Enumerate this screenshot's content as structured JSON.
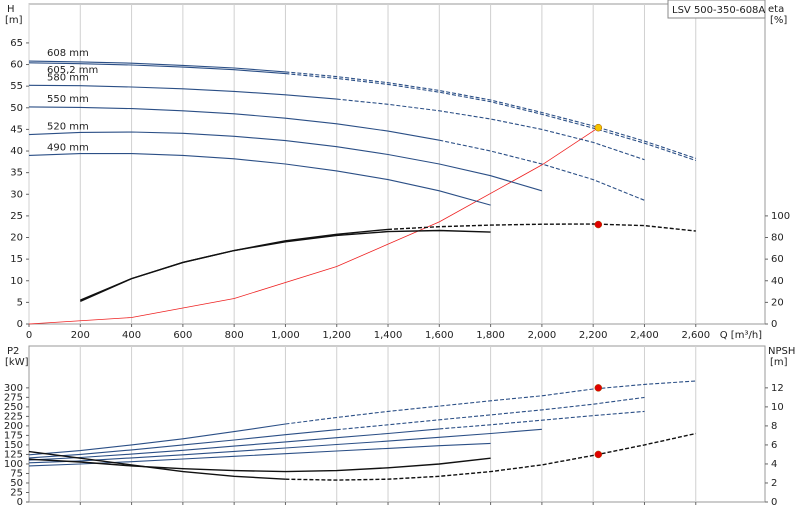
{
  "chart_data": [
    {
      "type": "line",
      "title": "LSV 500-350-608A",
      "ylabel": "H",
      "yunit": "[m]",
      "y2label": "eta",
      "y2unit": "[%]",
      "xlabel": "Q [m³/h]",
      "grid": true,
      "xtick_labels": true,
      "x": [
        0,
        200,
        400,
        600,
        800,
        1000,
        1200,
        1400,
        1600,
        1800,
        2000,
        2200,
        2400,
        2600
      ],
      "xlim": [
        0,
        2870
      ],
      "xticks": [
        0,
        200,
        400,
        600,
        800,
        {
          "value": 1000,
          "label": "1,000"
        },
        {
          "value": 1200,
          "label": "1,200"
        },
        {
          "value": 1400,
          "label": "1,400"
        },
        {
          "value": 1600,
          "label": "1,600"
        },
        {
          "value": 1800,
          "label": "1,800"
        },
        {
          "value": 2000,
          "label": "2,000"
        },
        {
          "value": 2200,
          "label": "2,200"
        },
        {
          "value": 2400,
          "label": "2,400"
        },
        {
          "value": 2600,
          "label": "2,600"
        }
      ],
      "ylim": [
        0,
        74
      ],
      "yticks": [
        0,
        5,
        10,
        15,
        20,
        25,
        30,
        35,
        40,
        45,
        50,
        55,
        60,
        65
      ],
      "y2lim": [
        0,
        296
      ],
      "y2ticks": [
        0,
        20,
        40,
        60,
        80,
        100
      ],
      "series": [
        {
          "name": "608 mm",
          "color": "#2b4f86",
          "values": [
            60.8,
            60.6,
            60.3,
            59.8,
            59.2,
            58.3,
            null,
            null,
            null,
            null,
            null,
            null,
            null,
            null
          ]
        },
        {
          "color": "#2b4f86",
          "style": "dashed",
          "values": [
            null,
            null,
            null,
            null,
            null,
            58.3,
            57.2,
            55.8,
            54,
            51.8,
            48.9,
            45.8,
            42.3,
            38.3
          ]
        },
        {
          "name": "605,2 mm",
          "color": "#2b4f86",
          "values": [
            60.4,
            60.2,
            59.9,
            59.4,
            58.8,
            57.9,
            null,
            null,
            null,
            null,
            null,
            null,
            null,
            null
          ]
        },
        {
          "color": "#2b4f86",
          "style": "dashed",
          "values": [
            null,
            null,
            null,
            null,
            null,
            57.9,
            56.8,
            55.4,
            53.6,
            51.4,
            48.5,
            45.3,
            41.8,
            37.8
          ]
        },
        {
          "name": "580 mm",
          "color": "#2b4f86",
          "values": [
            55.2,
            55.1,
            54.8,
            54.4,
            53.8,
            53,
            52,
            null,
            null,
            null,
            null,
            null,
            null,
            null
          ]
        },
        {
          "color": "#2b4f86",
          "style": "dashed",
          "values": [
            null,
            null,
            null,
            null,
            null,
            null,
            52,
            50.8,
            49.3,
            47.4,
            45,
            42,
            38,
            null
          ]
        },
        {
          "name": "550 mm",
          "color": "#2b4f86",
          "values": [
            50.2,
            50.1,
            49.8,
            49.3,
            48.6,
            47.6,
            46.3,
            44.6,
            42.5,
            null,
            null,
            null,
            null,
            null
          ]
        },
        {
          "color": "#2b4f86",
          "style": "dashed",
          "values": [
            null,
            null,
            null,
            null,
            null,
            null,
            null,
            null,
            42.5,
            40,
            37,
            33.4,
            28.6,
            null
          ]
        },
        {
          "name": "520 mm",
          "color": "#2b4f86",
          "values": [
            43.8,
            44.3,
            44.4,
            44.1,
            43.4,
            42.4,
            41,
            39.2,
            37,
            34.3,
            30.8,
            null,
            null,
            null
          ]
        },
        {
          "name": "490 mm",
          "color": "#2b4f86",
          "values": [
            39,
            39.4,
            39.4,
            39,
            38.2,
            37,
            35.4,
            33.4,
            30.8,
            27.5,
            null,
            null,
            null,
            null
          ]
        },
        {
          "color": "#111111",
          "axis": "y2",
          "values": [
            null,
            22,
            42,
            57,
            68,
            77,
            83,
            87.5,
            null,
            null,
            null,
            null,
            null,
            null
          ]
        },
        {
          "color": "#111111",
          "axis": "y2",
          "style": "dashed",
          "values": [
            null,
            null,
            null,
            null,
            null,
            null,
            null,
            87.5,
            90,
            91.5,
            92.3,
            92.5,
            91,
            86
          ]
        },
        {
          "color": "#111111",
          "axis": "y2",
          "values": [
            null,
            21,
            42,
            57,
            68,
            76,
            82,
            85.5,
            86.5,
            85,
            null,
            null,
            null,
            null
          ]
        }
      ],
      "system_curve": {
        "color": "#ee2222",
        "x": [
          0,
          400,
          800,
          1200,
          1600,
          2000,
          2220
        ],
        "values": [
          0,
          1.5,
          5.9,
          13.3,
          23.6,
          36.8,
          45.4
        ]
      },
      "markers": [
        {
          "x": 2220,
          "y": 45.4,
          "color": "#f5c400"
        },
        {
          "x": 2220,
          "y": 92,
          "axis": "y2",
          "color": "#e00000"
        }
      ]
    },
    {
      "type": "line",
      "ylabel": "P2",
      "yunit": "[kW]",
      "y2label": "NPSH",
      "y2unit": "[m]",
      "grid": true,
      "xtick_labels": false,
      "x": [
        0,
        200,
        400,
        600,
        800,
        1000,
        1200,
        1400,
        1600,
        1800,
        2000,
        2200,
        2400,
        2600
      ],
      "xlim": [
        0,
        2870
      ],
      "xticks": [
        200,
        400,
        600,
        800,
        1000,
        1200,
        1400,
        1600,
        1800,
        2000,
        2200,
        2400,
        2600
      ],
      "ylim": [
        0,
        410
      ],
      "yticks": [
        0,
        25,
        50,
        75,
        100,
        125,
        150,
        175,
        200,
        225,
        250,
        275,
        300
      ],
      "y2lim": [
        0,
        16.4
      ],
      "y2ticks": [
        0,
        2,
        4,
        6,
        8,
        10,
        12
      ],
      "series": [
        {
          "color": "#2b4f86",
          "values": [
            124,
            135,
            150,
            166,
            185,
            205,
            null,
            null,
            null,
            null,
            null,
            null,
            null,
            null
          ]
        },
        {
          "color": "#2b4f86",
          "style": "dashed",
          "values": [
            null,
            null,
            null,
            null,
            null,
            205,
            222,
            238,
            252,
            266,
            279,
            297,
            309,
            318
          ]
        },
        {
          "color": "#2b4f86",
          "values": [
            116,
            125,
            137,
            150,
            163,
            177,
            190,
            null,
            null,
            null,
            null,
            null,
            null,
            null
          ]
        },
        {
          "color": "#2b4f86",
          "style": "dashed",
          "values": [
            null,
            null,
            null,
            null,
            null,
            null,
            190,
            203,
            216,
            229,
            242,
            257,
            275,
            null
          ]
        },
        {
          "color": "#2b4f86",
          "values": [
            110,
            117,
            126,
            136,
            147,
            158,
            169,
            180,
            192,
            null,
            null,
            null,
            null,
            null
          ]
        },
        {
          "color": "#2b4f86",
          "style": "dashed",
          "values": [
            null,
            null,
            null,
            null,
            null,
            null,
            null,
            null,
            192,
            203,
            215,
            227,
            238,
            null
          ]
        },
        {
          "color": "#2b4f86",
          "values": [
            103,
            108,
            116,
            124,
            133,
            142,
            151,
            160,
            170,
            180,
            191,
            null,
            null,
            null
          ]
        },
        {
          "color": "#2b4f86",
          "values": [
            95,
            100,
            106,
            113,
            120,
            127,
            134,
            141,
            148,
            154,
            null,
            null,
            null,
            null
          ]
        },
        {
          "color": "#111111",
          "axis": "y2",
          "values": [
            5.3,
            4.6,
            3.9,
            3.2,
            2.7,
            2.4,
            null,
            null,
            null,
            null,
            null,
            null,
            null,
            null
          ]
        },
        {
          "color": "#111111",
          "axis": "y2",
          "style": "dashed",
          "values": [
            null,
            null,
            null,
            null,
            null,
            2.4,
            2.3,
            2.4,
            2.7,
            3.2,
            3.9,
            4.9,
            6,
            7.2
          ]
        },
        {
          "color": "#111111",
          "axis": "y2",
          "values": [
            4.5,
            4.2,
            3.8,
            3.5,
            3.3,
            3.2,
            3.3,
            3.6,
            4,
            4.6,
            null,
            null,
            null,
            null
          ]
        }
      ],
      "markers": [
        {
          "x": 2220,
          "y": 300,
          "color": "#e00000"
        },
        {
          "x": 2220,
          "y": 5,
          "axis": "y2",
          "color": "#e00000"
        }
      ]
    }
  ]
}
